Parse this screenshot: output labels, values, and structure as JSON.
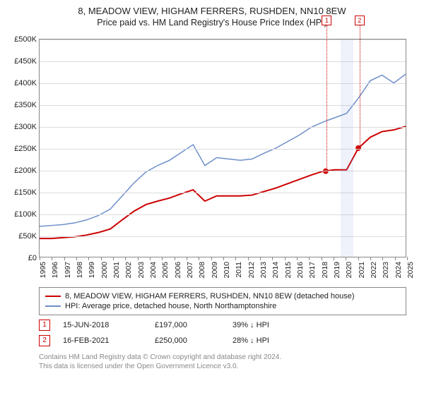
{
  "title": {
    "main": "8, MEADOW VIEW, HIGHAM FERRERS, RUSHDEN, NN10 8EW",
    "sub": "Price paid vs. HM Land Registry's House Price Index (HPI)"
  },
  "chart": {
    "type": "line",
    "background_color": "#ffffff",
    "border_color": "#888888",
    "grid_color": "#dcdcdc",
    "ylim": [
      0,
      500000
    ],
    "ytick_step": 50000,
    "yticks": [
      "£0",
      "£50K",
      "£100K",
      "£150K",
      "£200K",
      "£250K",
      "£300K",
      "£350K",
      "£400K",
      "£450K",
      "£500K"
    ],
    "xticks": [
      "1995",
      "1996",
      "1997",
      "1998",
      "1999",
      "2000",
      "2001",
      "2002",
      "2003",
      "2004",
      "2005",
      "2006",
      "2007",
      "2008",
      "2009",
      "2010",
      "2011",
      "2012",
      "2013",
      "2014",
      "2015",
      "2016",
      "2017",
      "2018",
      "2019",
      "2020",
      "2021",
      "2022",
      "2023",
      "2024",
      "2025"
    ],
    "label_fontsize": 11,
    "tick_fontsize": 10.5,
    "series": [
      {
        "name": "property",
        "label": "8, MEADOW VIEW, HIGHAM FERRERS, RUSHDEN, NN10 8EW (detached house)",
        "color": "#cc0000",
        "line_width": 2,
        "values": [
          42000,
          42000,
          44000,
          46000,
          50000,
          56000,
          64000,
          85000,
          105000,
          120000,
          128000,
          135000,
          145000,
          154000,
          128000,
          140000,
          140000,
          140000,
          142000,
          150000,
          158000,
          168000,
          178000,
          188000,
          197000,
          200000,
          200000,
          250000,
          275000,
          288000,
          292000,
          300000
        ]
      },
      {
        "name": "hpi",
        "label": "HPI: Average price, detached house, North Northamptonshire",
        "color": "#6d8fc9",
        "line_width": 1.5,
        "values": [
          70000,
          72000,
          74000,
          78000,
          85000,
          95000,
          110000,
          140000,
          170000,
          195000,
          210000,
          222000,
          240000,
          258000,
          210000,
          228000,
          225000,
          222000,
          225000,
          238000,
          250000,
          265000,
          280000,
          298000,
          310000,
          320000,
          330000,
          365000,
          405000,
          418000,
          400000,
          420000
        ]
      }
    ],
    "markers": [
      {
        "badge": "1",
        "date": "15-JUN-2018",
        "price": "£197,000",
        "diff": "39% ↓ HPI",
        "x_year": 2018.45,
        "y_value": 197000
      },
      {
        "badge": "2",
        "date": "16-FEB-2021",
        "price": "£250,000",
        "diff": "28% ↓ HPI",
        "x_year": 2021.12,
        "y_value": 250000
      }
    ],
    "highlight_band": {
      "from_year": 2019.6,
      "to_year": 2020.6,
      "color": "rgba(120,150,220,0.12)"
    }
  },
  "footer": {
    "line1": "Contains HM Land Registry data © Crown copyright and database right 2024.",
    "line2": "This data is licensed under the Open Government Licence v3.0."
  }
}
